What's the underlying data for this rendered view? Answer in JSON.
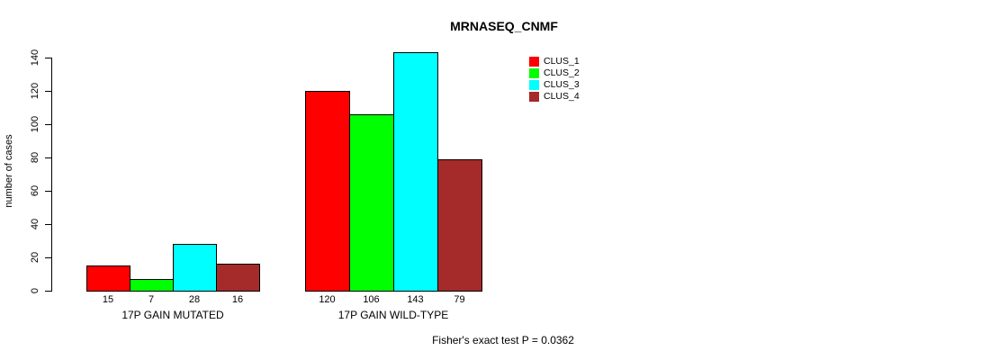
{
  "chart_data": {
    "type": "bar",
    "title": "MRNASEQ_CNMF",
    "ylabel": "number of cases",
    "xlabel": "",
    "yticks": [
      0,
      20,
      40,
      60,
      80,
      100,
      120,
      140
    ],
    "ylim": [
      0,
      145
    ],
    "grid": false,
    "legend_position": "top-right",
    "bar_value_labels": true,
    "categories": [
      "17P GAIN MUTATED",
      "17P GAIN WILD-TYPE"
    ],
    "series": [
      {
        "name": "CLUS_1",
        "color": "#ff0000",
        "values": [
          15,
          120
        ]
      },
      {
        "name": "CLUS_2",
        "color": "#00ff00",
        "values": [
          7,
          106
        ]
      },
      {
        "name": "CLUS_3",
        "color": "#00ffff",
        "values": [
          28,
          143
        ]
      },
      {
        "name": "CLUS_4",
        "color": "#a52a2a",
        "values": [
          16,
          79
        ]
      }
    ],
    "annotation": "Fisher's exact test P = 0.0362",
    "axis_color": "#000000",
    "bar_border_color": "#000000"
  }
}
